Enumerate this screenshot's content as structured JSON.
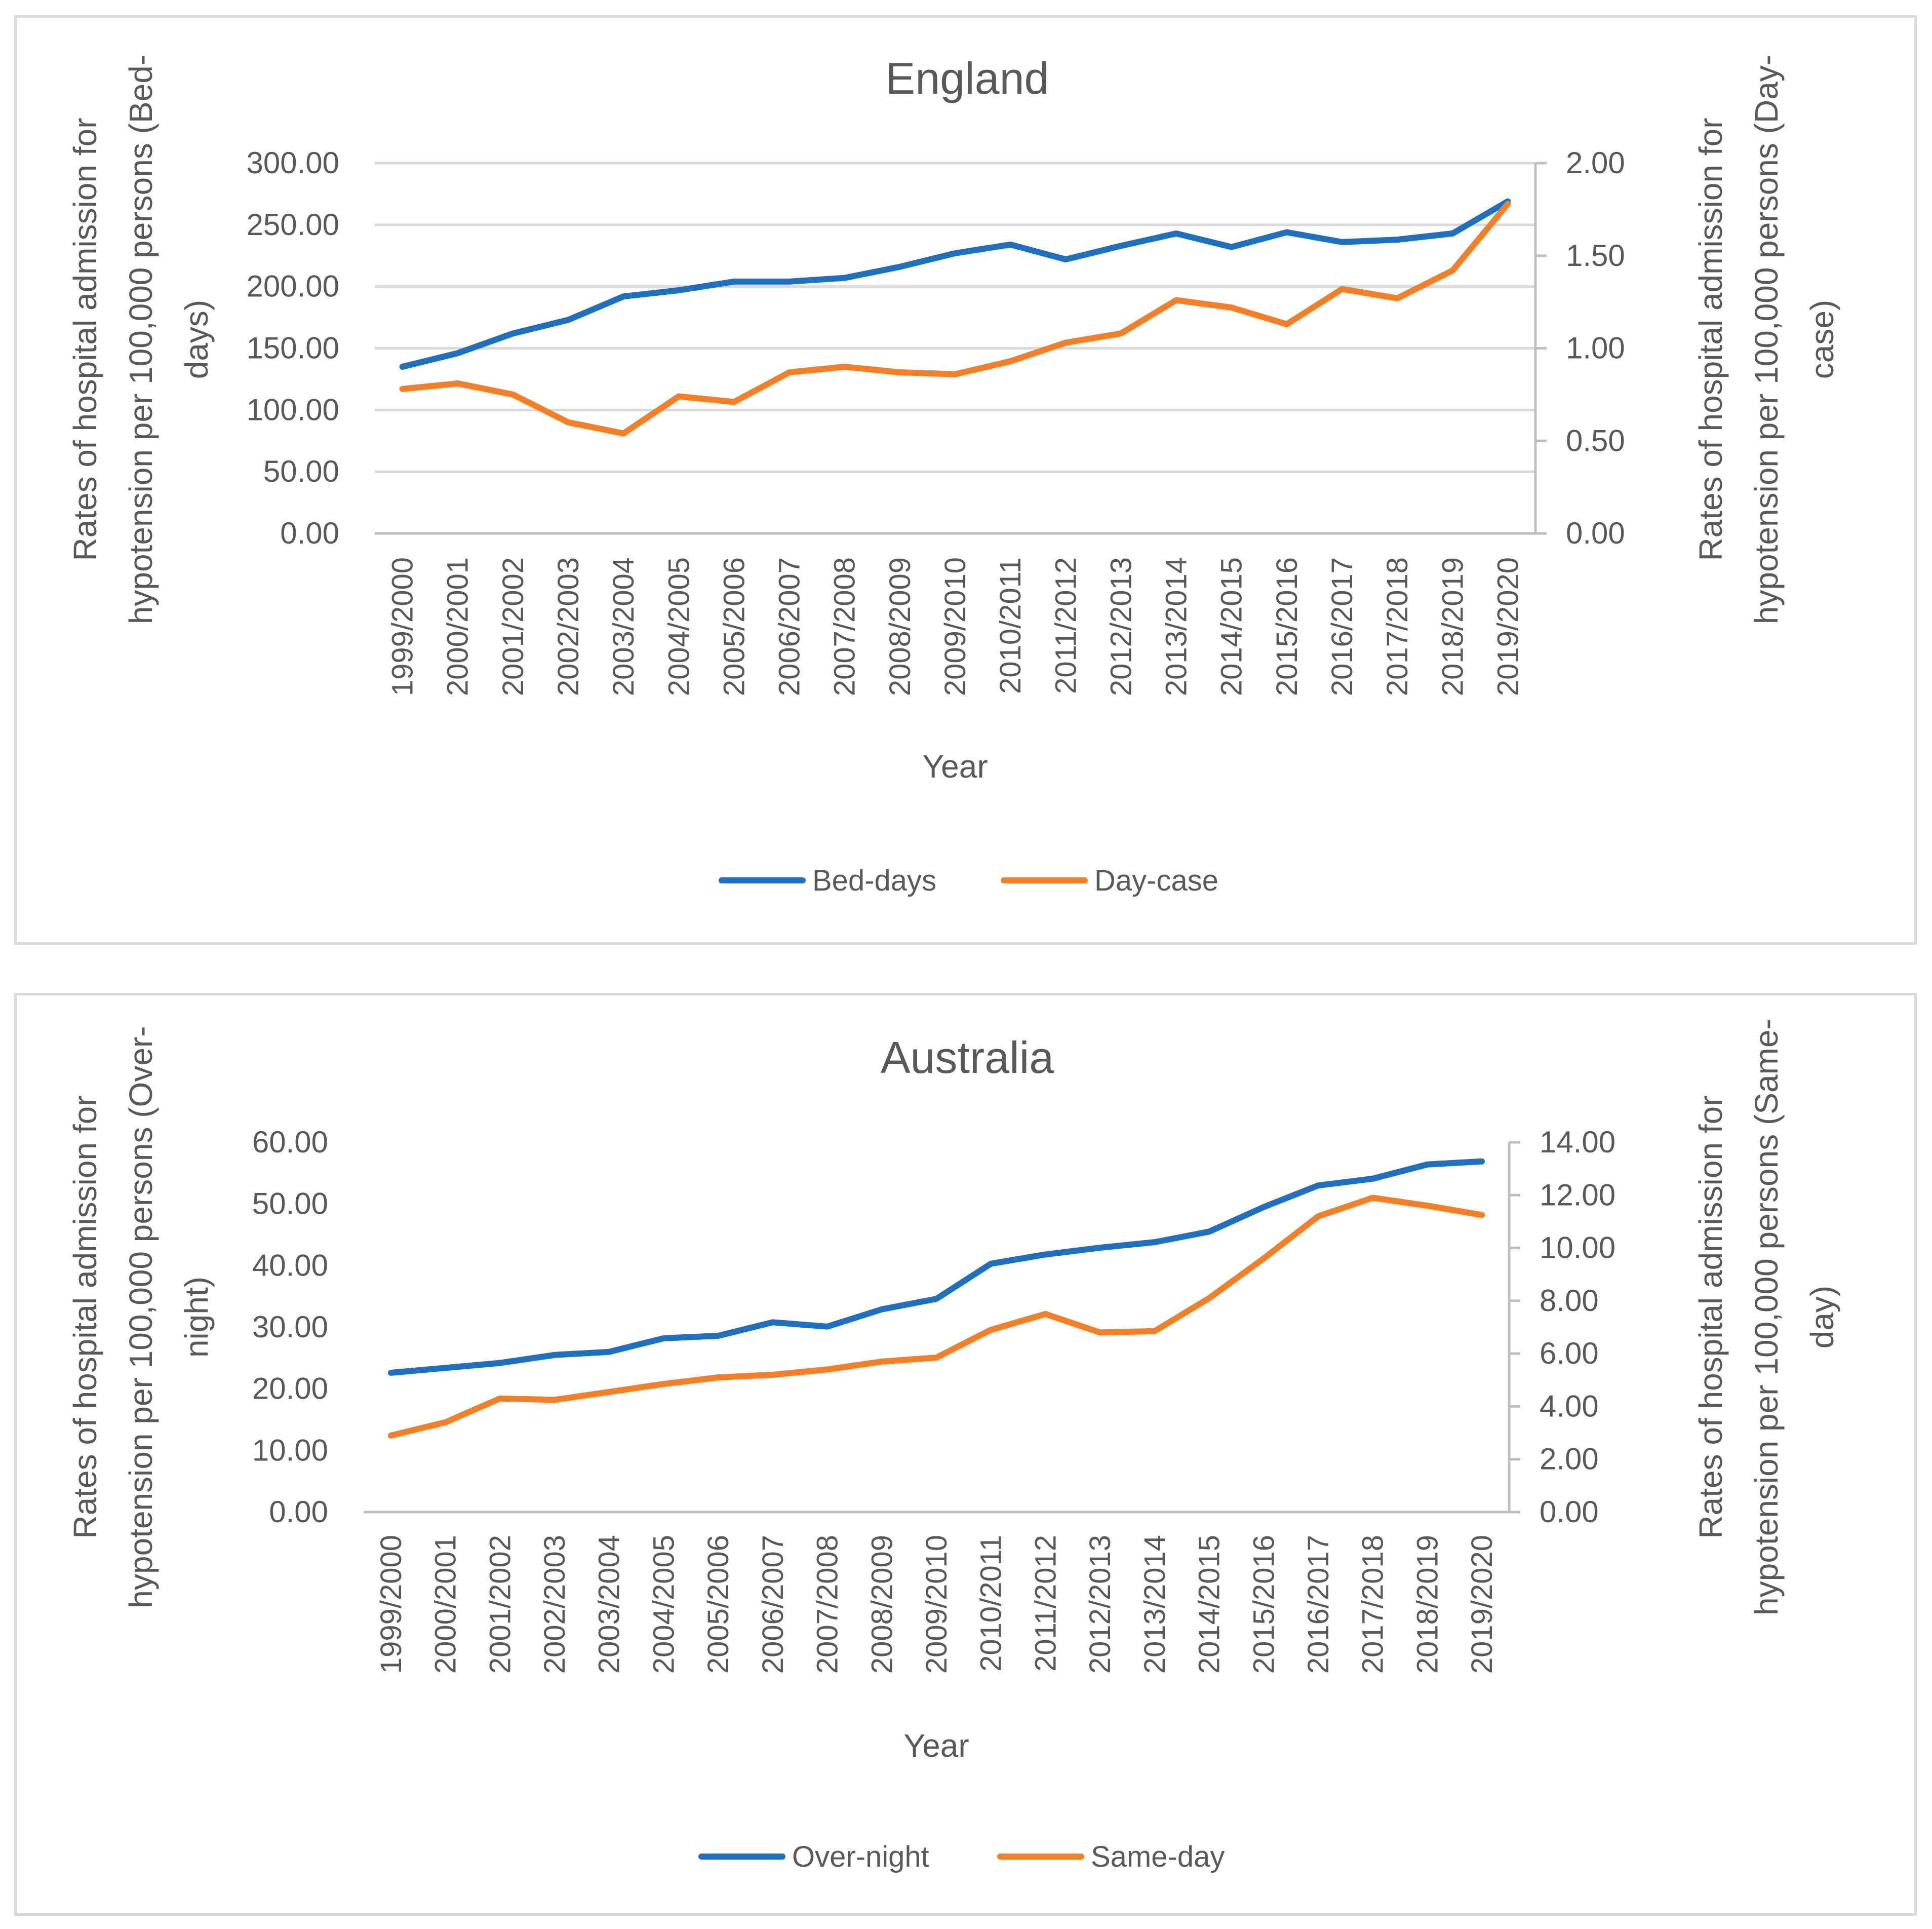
{
  "chart_data": [
    {
      "type": "line",
      "title": "England",
      "xlabel": "Year",
      "ylabel_left": "Rates of hospital admission for hypotension per 100,000 persons (Bed-days)",
      "ylabel_left_lines": [
        "Rates of hospital admission for",
        "hypotension per 100,000 persons (Bed-",
        "days)"
      ],
      "ylabel_right": "Rates of hospital admission for hypotension per 100,000 persons (Day-case)",
      "ylabel_right_lines": [
        "Rates of hospital admission for",
        "hypotension per 100,000 persons (Day-",
        "case)"
      ],
      "categories": [
        "1999/2000",
        "2000/2001",
        "2001/2002",
        "2002/2003",
        "2003/2004",
        "2004/2005",
        "2005/2006",
        "2006/2007",
        "2007/2008",
        "2008/2009",
        "2009/2010",
        "2010/2011",
        "2011/2012",
        "2012/2013",
        "2013/2014",
        "2014/2015",
        "2015/2016",
        "2016/2017",
        "2017/2018",
        "2018/2019",
        "2019/2020"
      ],
      "ylim_left": [
        0,
        300
      ],
      "ylim_right": [
        0,
        2
      ],
      "yticks_left": [
        "0.00",
        "50.00",
        "100.00",
        "150.00",
        "200.00",
        "250.00",
        "300.00"
      ],
      "yticks_right": [
        "0.00",
        "0.50",
        "1.00",
        "1.50",
        "2.00"
      ],
      "grid": true,
      "legend_position": "bottom",
      "series": [
        {
          "name": "Bed-days",
          "axis": "left",
          "color": "#1f70c1",
          "values": [
            135,
            146,
            162,
            173,
            192,
            197,
            204,
            204,
            207,
            216,
            227,
            234,
            222,
            233,
            243,
            232,
            244,
            236,
            238,
            243,
            269
          ]
        },
        {
          "name": "Day-case",
          "axis": "right",
          "color": "#f57f27",
          "values": [
            0.78,
            0.81,
            0.75,
            0.6,
            0.54,
            0.74,
            0.71,
            0.87,
            0.9,
            0.87,
            0.86,
            0.93,
            1.03,
            1.08,
            1.26,
            1.22,
            1.13,
            1.32,
            1.27,
            1.42,
            1.78
          ]
        }
      ]
    },
    {
      "type": "line",
      "title": "Australia",
      "xlabel": "Year",
      "ylabel_left": "Rates of hospital admission for hypotension per 100,000 persons (Over-night)",
      "ylabel_left_lines": [
        "Rates of hospital admission for",
        "hypotension per 100,000 persons (Over-",
        "night)"
      ],
      "ylabel_right": "Rates of hospital admission for hypotension per 100,000 persons (Same-day)",
      "ylabel_right_lines": [
        "Rates of hospital admission for",
        "hypotension per 100,000 persons (Same-",
        "day)"
      ],
      "categories": [
        "1999/2000",
        "2000/2001",
        "2001/2002",
        "2002/2003",
        "2003/2004",
        "2004/2005",
        "2005/2006",
        "2006/2007",
        "2007/2008",
        "2008/2009",
        "2009/2010",
        "2010/2011",
        "2011/2012",
        "2012/2013",
        "2013/2014",
        "2014/2015",
        "2015/2016",
        "2016/2017",
        "2017/2018",
        "2018/2019",
        "2019/2020"
      ],
      "ylim_left": [
        0,
        60
      ],
      "ylim_right": [
        0,
        14
      ],
      "yticks_left": [
        "0.00",
        "10.00",
        "20.00",
        "30.00",
        "40.00",
        "50.00",
        "60.00"
      ],
      "yticks_right": [
        "0.00",
        "2.00",
        "4.00",
        "6.00",
        "8.00",
        "10.00",
        "12.00",
        "14.00"
      ],
      "grid": false,
      "legend_position": "bottom",
      "series": [
        {
          "name": "Over-night",
          "axis": "left",
          "color": "#1f70c1",
          "values": [
            22.6,
            23.4,
            24.2,
            25.5,
            26.0,
            28.2,
            28.6,
            30.8,
            30.1,
            32.9,
            34.6,
            40.3,
            41.8,
            42.9,
            43.8,
            45.5,
            49.5,
            53.0,
            54.1,
            56.4,
            56.9
          ]
        },
        {
          "name": "Same-day",
          "axis": "right",
          "color": "#f57f27",
          "values": [
            2.9,
            3.4,
            4.3,
            4.25,
            4.55,
            4.85,
            5.1,
            5.2,
            5.4,
            5.7,
            5.85,
            6.9,
            7.5,
            6.8,
            6.85,
            8.1,
            9.6,
            11.2,
            11.9,
            11.6,
            11.25
          ]
        }
      ]
    }
  ]
}
